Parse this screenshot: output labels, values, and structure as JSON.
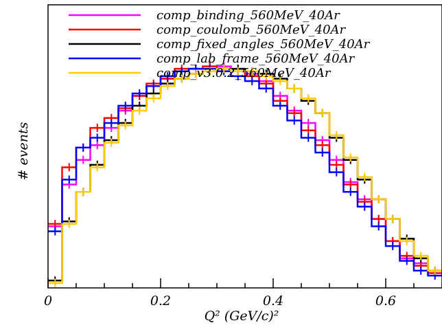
{
  "chart_data": {
    "type": "line",
    "xlabel": "Q² (GeV/c)²",
    "ylabel": "# events",
    "xlim": [
      0,
      0.7
    ],
    "ylim": [
      0,
      1.15
    ],
    "x_ticks": [
      "0",
      "0.2",
      "0.4",
      "0.6"
    ],
    "x_tick_values": [
      0,
      0.2,
      0.4,
      0.6
    ],
    "legend_position": "top",
    "bin_width": 0.025,
    "series": [
      {
        "name": "comp_binding_560MeV_40Ar",
        "color": "#ff00ff",
        "values": [
          0.25,
          0.42,
          0.52,
          0.58,
          0.65,
          0.72,
          0.78,
          0.82,
          0.85,
          0.88,
          0.89,
          0.9,
          0.9,
          0.89,
          0.87,
          0.84,
          0.78,
          0.72,
          0.67,
          0.6,
          0.52,
          0.43,
          0.36,
          0.28,
          0.19,
          0.12,
          0.1,
          0.07
        ]
      },
      {
        "name": "comp_coulomb_560MeV_40Ar",
        "color": "#ff0000",
        "values": [
          0.26,
          0.49,
          0.57,
          0.65,
          0.69,
          0.73,
          0.78,
          0.83,
          0.85,
          0.89,
          0.89,
          0.9,
          0.89,
          0.88,
          0.86,
          0.83,
          0.76,
          0.71,
          0.64,
          0.58,
          0.5,
          0.42,
          0.35,
          0.28,
          0.19,
          0.13,
          0.09,
          0.06
        ]
      },
      {
        "name": "comp_fixed_angles_560MeV_40Ar",
        "color": "#000000",
        "values": [
          0.03,
          0.27,
          0.39,
          0.5,
          0.6,
          0.67,
          0.74,
          0.79,
          0.83,
          0.85,
          0.87,
          0.88,
          0.89,
          0.89,
          0.88,
          0.87,
          0.85,
          0.81,
          0.76,
          0.71,
          0.61,
          0.52,
          0.44,
          0.36,
          0.28,
          0.2,
          0.12,
          0.07
        ]
      },
      {
        "name": "comp_lab_frame_560MeV_40Ar",
        "color": "#0000ff",
        "values": [
          0.23,
          0.44,
          0.57,
          0.61,
          0.67,
          0.74,
          0.79,
          0.82,
          0.86,
          0.88,
          0.89,
          0.89,
          0.88,
          0.86,
          0.84,
          0.81,
          0.74,
          0.68,
          0.61,
          0.55,
          0.47,
          0.39,
          0.33,
          0.25,
          0.17,
          0.11,
          0.07,
          0.05
        ]
      },
      {
        "name": "comp_v3.0.2_560MeV_40Ar",
        "color": "#ffcc00",
        "values": [
          0.02,
          0.26,
          0.39,
          0.49,
          0.59,
          0.66,
          0.72,
          0.77,
          0.82,
          0.85,
          0.87,
          0.88,
          0.89,
          0.88,
          0.88,
          0.86,
          0.84,
          0.81,
          0.77,
          0.71,
          0.62,
          0.53,
          0.45,
          0.36,
          0.28,
          0.19,
          0.13,
          0.07
        ]
      }
    ]
  }
}
